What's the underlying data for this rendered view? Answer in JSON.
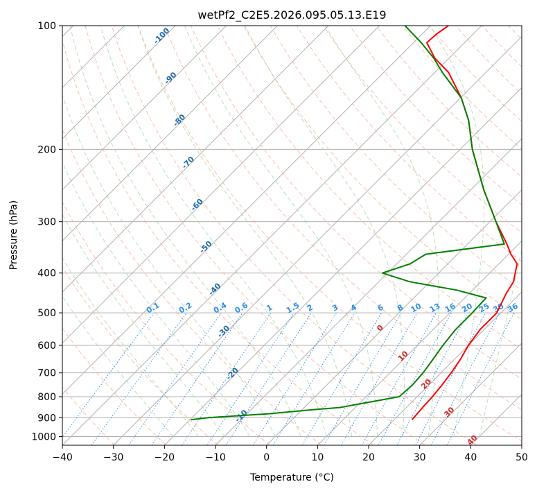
{
  "chart_data": {
    "type": "line",
    "title": "wetPf2_C2E5.2026.095.05.13.E19",
    "xlabel": "Temperature (°C)",
    "ylabel": "Pressure (hPa)",
    "xlim": [
      -40,
      50
    ],
    "ylim": [
      1050,
      100
    ],
    "yscale": "log",
    "skew": true,
    "grid": true,
    "x_ticks": [
      "−40",
      "−30",
      "−20",
      "−10",
      "0",
      "10",
      "20",
      "30",
      "40",
      "50"
    ],
    "y_ticks": [
      "100",
      "200",
      "300",
      "400",
      "500",
      "600",
      "700",
      "800",
      "900",
      "1000"
    ],
    "mixing_ratio_labels": [
      "0.1",
      "0.2",
      "0.4",
      "0.6",
      "1",
      "1.5",
      "2",
      "3",
      "4",
      "6",
      "8",
      "10",
      "13",
      "16",
      "20",
      "25",
      "30",
      "36"
    ],
    "dry_adiabat_labels": [
      "-100",
      "-90",
      "-80",
      "-70",
      "-60",
      "-50",
      "-40",
      "-30",
      "-20",
      "-10",
      "0",
      "10",
      "20",
      "30",
      "40"
    ],
    "series": [
      {
        "name": "",
        "color": "#ff0000",
        "pressure": [
          910,
          850,
          800,
          750,
          700,
          650,
          600,
          550,
          500,
          450,
          420,
          400,
          380,
          360,
          340,
          300,
          250,
          200,
          170,
          150,
          130,
          120,
          110,
          105,
          100
        ],
        "temperature": [
          23.5,
          23.2,
          23.0,
          22.6,
          22.0,
          21.2,
          20.0,
          19.2,
          19.2,
          17.3,
          16.4,
          15.0,
          13.6,
          10.5,
          7.7,
          1.2,
          -7.6,
          -17.6,
          -24.0,
          -29.8,
          -37.3,
          -42.8,
          -47.4,
          -47.2,
          -46.5
        ]
      },
      {
        "name": "",
        "color": "#008000",
        "pressure": [
          910,
          900,
          880,
          860,
          850,
          800,
          750,
          700,
          650,
          600,
          550,
          500,
          460,
          440,
          420,
          400,
          380,
          360,
          340,
          300,
          250,
          200,
          170,
          150,
          130,
          120,
          110,
          100
        ],
        "temperature": [
          -19.8,
          -16.8,
          -5.7,
          2.3,
          7.0,
          16.5,
          16.8,
          16.5,
          15.8,
          15.0,
          14.4,
          14.4,
          14.2,
          6.8,
          -4.0,
          -11.0,
          -7.4,
          -6.2,
          7.2,
          1.2,
          -7.6,
          -17.6,
          -24.0,
          -29.8,
          -38.5,
          -43.0,
          -48.5,
          -55.0
        ]
      }
    ]
  }
}
